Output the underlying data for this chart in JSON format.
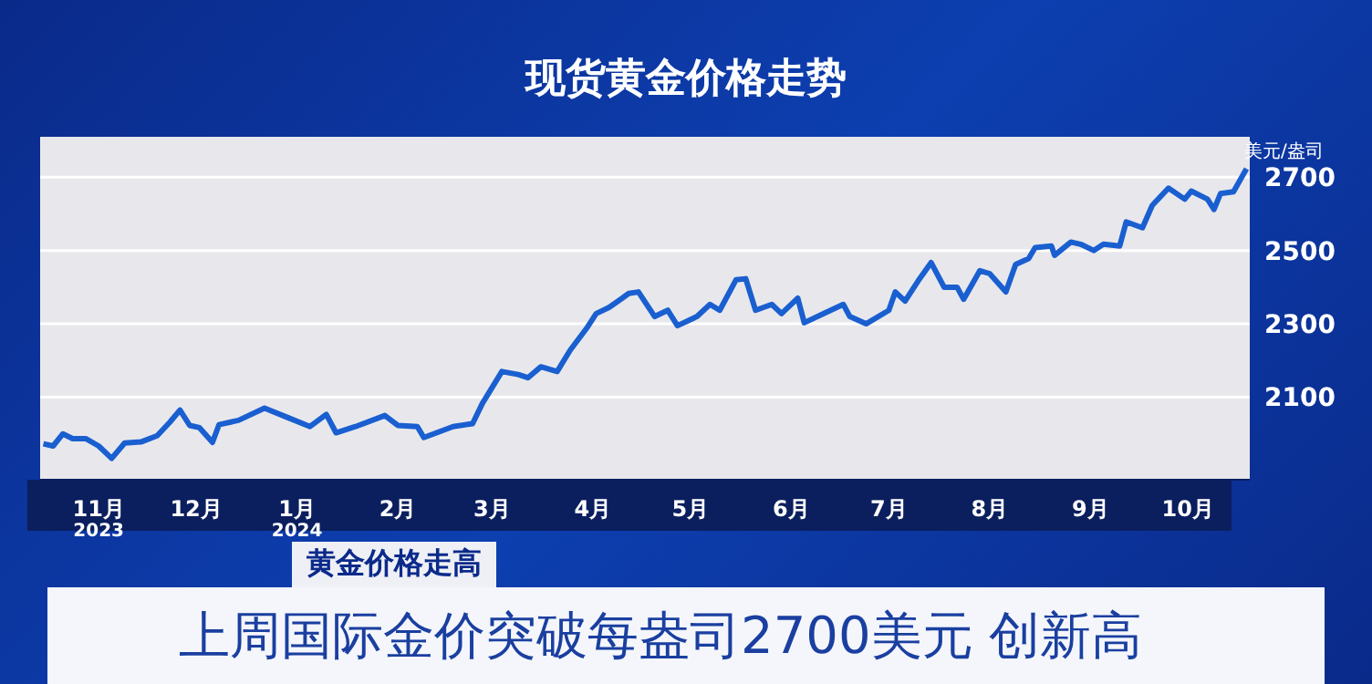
{
  "chart_data": {
    "type": "line",
    "title": "现货黄金价格走势",
    "ylabel": "美元/盎司",
    "annotations": [
      "黄金价格走高",
      "上周国际金价突破每盎司2700美元 创新高"
    ],
    "x": [
      "2023-10-15",
      "2023-10-18",
      "2023-10-21",
      "2023-10-24",
      "2023-10-28",
      "2023-11-01",
      "2023-11-05",
      "2023-11-09",
      "2023-11-14",
      "2023-11-19",
      "2023-11-23",
      "2023-11-26",
      "2023-11-29",
      "2023-12-02",
      "2023-12-06",
      "2023-12-08",
      "2023-12-14",
      "2023-12-22",
      "2023-12-29",
      "2024-01-05",
      "2024-01-10",
      "2024-01-13",
      "2024-01-19",
      "2024-01-28",
      "2024-02-01",
      "2024-02-07",
      "2024-02-09",
      "2024-02-18",
      "2024-02-24",
      "2024-02-27",
      "2024-03-04",
      "2024-03-09",
      "2024-03-12",
      "2024-03-16",
      "2024-03-21",
      "2024-03-25",
      "2024-03-30",
      "2024-04-02",
      "2024-04-06",
      "2024-04-10",
      "2024-04-12",
      "2024-04-15",
      "2024-04-20",
      "2024-04-24",
      "2024-04-27",
      "2024-05-03",
      "2024-05-07",
      "2024-05-10",
      "2024-05-15",
      "2024-05-18",
      "2024-05-21",
      "2024-05-26",
      "2024-05-29",
      "2024-06-03",
      "2024-06-05",
      "2024-06-11",
      "2024-06-17",
      "2024-06-19",
      "2024-06-24",
      "2024-07-01",
      "2024-07-03",
      "2024-07-06",
      "2024-07-10",
      "2024-07-14",
      "2024-07-18",
      "2024-07-22",
      "2024-07-24",
      "2024-07-29",
      "2024-08-01",
      "2024-08-06",
      "2024-08-09",
      "2024-08-13",
      "2024-08-15",
      "2024-08-20",
      "2024-08-21",
      "2024-08-26",
      "2024-08-29",
      "2024-09-02",
      "2024-09-05",
      "2024-09-10",
      "2024-09-12",
      "2024-09-17",
      "2024-09-20",
      "2024-09-25",
      "2024-09-30",
      "2024-10-02",
      "2024-10-07",
      "2024-10-09",
      "2024-10-11",
      "2024-10-15",
      "2024-10-19"
    ],
    "series": [
      {
        "color": "#1a5fd0",
        "values": [
          1973,
          1967,
          2000,
          1987,
          1987,
          1967,
          1933,
          1975,
          1978,
          1995,
          2033,
          2065,
          2023,
          2017,
          1977,
          2025,
          2037,
          2070,
          2045,
          2020,
          2053,
          2003,
          2020,
          2050,
          2023,
          2020,
          1990,
          2020,
          2028,
          2083,
          2170,
          2162,
          2153,
          2183,
          2170,
          2228,
          2287,
          2328,
          2345,
          2370,
          2383,
          2387,
          2320,
          2337,
          2295,
          2320,
          2353,
          2337,
          2420,
          2423,
          2337,
          2353,
          2328,
          2370,
          2303,
          2328,
          2353,
          2320,
          2300,
          2337,
          2387,
          2362,
          2417,
          2467,
          2400,
          2400,
          2367,
          2445,
          2437,
          2387,
          2462,
          2478,
          2508,
          2512,
          2487,
          2523,
          2517,
          2500,
          2517,
          2512,
          2578,
          2562,
          2623,
          2670,
          2640,
          2662,
          2640,
          2612,
          2655,
          2660,
          2723
        ]
      }
    ],
    "xlim": [
      "2023-10-14",
      "2024-10-20"
    ],
    "xticks": [
      {
        "value": "2023-11-01",
        "label": "11月\n2023"
      },
      {
        "value": "2023-12-01",
        "label": "12月"
      },
      {
        "value": "2024-01-01",
        "label": "1月\n2024"
      },
      {
        "value": "2024-02-01",
        "label": "2月"
      },
      {
        "value": "2024-03-01",
        "label": "3月"
      },
      {
        "value": "2024-04-01",
        "label": "4月"
      },
      {
        "value": "2024-05-01",
        "label": "5月"
      },
      {
        "value": "2024-06-01",
        "label": "6月"
      },
      {
        "value": "2024-07-01",
        "label": "7月"
      },
      {
        "value": "2024-08-01",
        "label": "8月"
      },
      {
        "value": "2024-09-01",
        "label": "9月"
      },
      {
        "value": "2024-10-01",
        "label": "10月"
      }
    ],
    "ylim": [
      1875,
      2810
    ],
    "yticks": [
      2100,
      2300,
      2500,
      2700
    ],
    "grid": "y",
    "marker": "none",
    "line_style": "solid"
  }
}
